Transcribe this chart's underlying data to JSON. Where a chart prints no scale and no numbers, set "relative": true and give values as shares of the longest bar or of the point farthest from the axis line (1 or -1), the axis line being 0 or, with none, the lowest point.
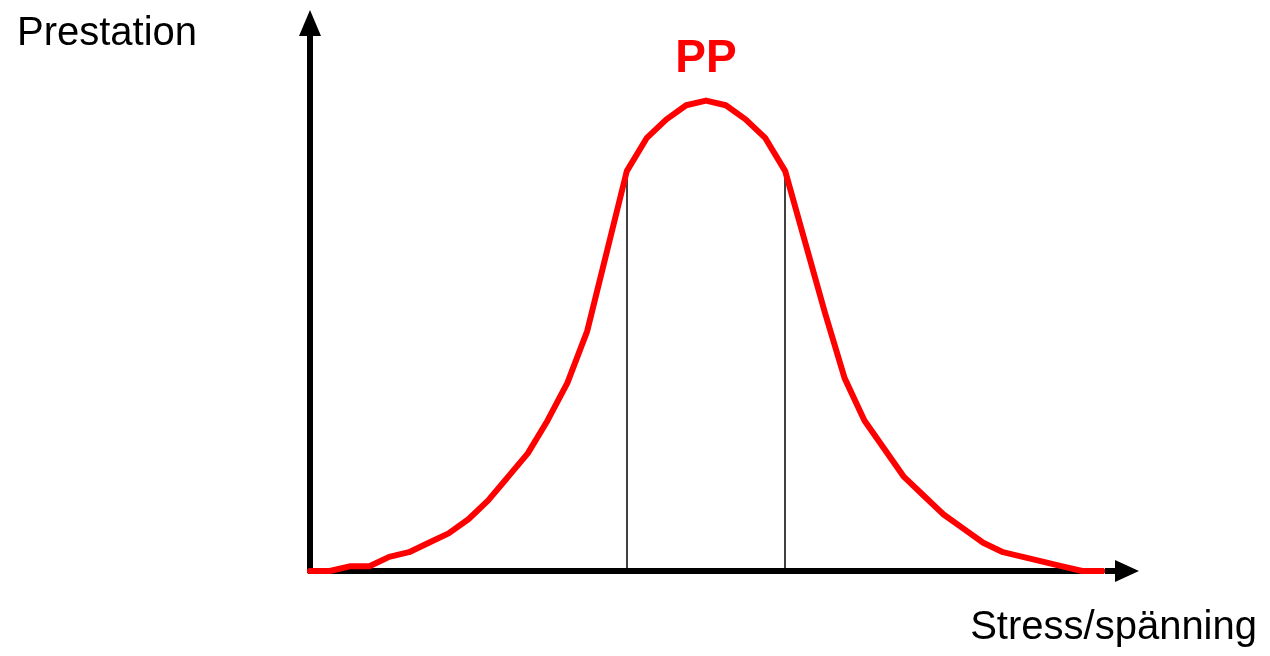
{
  "chart_data": {
    "type": "line",
    "relative": true,
    "xlabel": "Stress/spänning",
    "ylabel": "Prestation",
    "categories": [
      null,
      null,
      null,
      null,
      null,
      null,
      null,
      null,
      null,
      null,
      null,
      null,
      null,
      null,
      null,
      null,
      null,
      null,
      null,
      null,
      null,
      null,
      null,
      null,
      null,
      null,
      null,
      null,
      null,
      null,
      null,
      null,
      null,
      null,
      null,
      null,
      null,
      null,
      null,
      null,
      null
    ],
    "grid": false,
    "marker": "none",
    "line_style": "solid",
    "series": [
      {
        "color": "#ff0000",
        "values": [
          0,
          0,
          0.01,
          0.01,
          0.03,
          0.04,
          0.06,
          0.08,
          0.11,
          0.15,
          0.2,
          0.25,
          0.32,
          0.4,
          0.51,
          0.68,
          0.85,
          0.92,
          0.96,
          0.99,
          1,
          0.99,
          0.96,
          0.92,
          0.85,
          0.7,
          0.55,
          0.41,
          0.32,
          0.26,
          0.2,
          0.16,
          0.12,
          0.09,
          0.06,
          0.04,
          0.03,
          0.02,
          0.01,
          0,
          0
        ]
      }
    ],
    "annotations": [
      "PP"
    ]
  }
}
